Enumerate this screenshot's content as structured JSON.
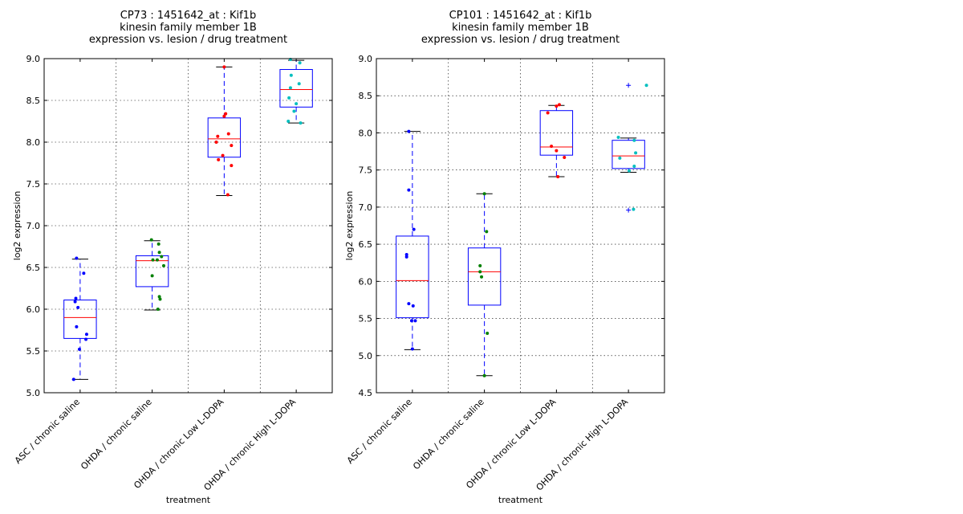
{
  "chart_data": [
    {
      "type": "box",
      "title_lines": [
        "CP73 : 1451642_at : Kif1b",
        "kinesin family member 1B",
        "expression vs. lesion / drug treatment"
      ],
      "xlabel": "treatment",
      "ylabel": "log2 expression",
      "ylim": [
        5.0,
        9.0
      ],
      "yticks": [
        5.0,
        5.5,
        6.0,
        6.5,
        7.0,
        7.5,
        8.0,
        8.5,
        9.0
      ],
      "grid": true,
      "categories": [
        "ASC / chronic saline",
        "OHDA / chronic saline",
        "OHDA / chronic Low L-DOPA",
        "OHDA / chronic High L-DOPA"
      ],
      "colors": [
        "#0000ff",
        "#008000",
        "#ff0000",
        "#00bfbf"
      ],
      "boxes": [
        {
          "whisker_low": 5.16,
          "q1": 5.65,
          "median": 5.9,
          "q3": 6.11,
          "whisker_high": 6.6
        },
        {
          "whisker_low": 5.99,
          "q1": 6.27,
          "median": 6.58,
          "q3": 6.64,
          "whisker_high": 6.82
        },
        {
          "whisker_low": 7.36,
          "q1": 7.82,
          "median": 8.04,
          "q3": 8.29,
          "whisker_high": 8.9
        },
        {
          "whisker_low": 8.23,
          "q1": 8.42,
          "median": 8.63,
          "q3": 8.87,
          "whisker_high": 8.98
        }
      ],
      "outliers": [
        [],
        [],
        [],
        []
      ],
      "points": [
        [
          {
            "dx": -0.05,
            "y": 6.61
          },
          {
            "dx": 0.05,
            "y": 6.43
          },
          {
            "dx": -0.06,
            "y": 6.13
          },
          {
            "dx": -0.07,
            "y": 6.09
          },
          {
            "dx": -0.03,
            "y": 6.02
          },
          {
            "dx": -0.05,
            "y": 5.79
          },
          {
            "dx": 0.09,
            "y": 5.7
          },
          {
            "dx": 0.08,
            "y": 5.64
          },
          {
            "dx": -0.01,
            "y": 5.52
          },
          {
            "dx": -0.09,
            "y": 5.16
          }
        ],
        [
          {
            "dx": -0.01,
            "y": 6.83
          },
          {
            "dx": 0.09,
            "y": 6.78
          },
          {
            "dx": 0.1,
            "y": 6.68
          },
          {
            "dx": 0.13,
            "y": 6.63
          },
          {
            "dx": 0.01,
            "y": 6.59
          },
          {
            "dx": 0.07,
            "y": 6.59
          },
          {
            "dx": 0.16,
            "y": 6.52
          },
          {
            "dx": 0.0,
            "y": 6.4
          },
          {
            "dx": 0.1,
            "y": 6.15
          },
          {
            "dx": 0.11,
            "y": 6.12
          },
          {
            "dx": 0.08,
            "y": 6.0
          }
        ],
        [
          {
            "dx": 0.0,
            "y": 8.9
          },
          {
            "dx": 0.02,
            "y": 8.34
          },
          {
            "dx": 0.0,
            "y": 8.31
          },
          {
            "dx": -0.09,
            "y": 8.07
          },
          {
            "dx": 0.06,
            "y": 8.1
          },
          {
            "dx": -0.11,
            "y": 8.0
          },
          {
            "dx": 0.1,
            "y": 7.96
          },
          {
            "dx": -0.02,
            "y": 7.84
          },
          {
            "dx": -0.08,
            "y": 7.79
          },
          {
            "dx": 0.1,
            "y": 7.72
          },
          {
            "dx": 0.05,
            "y": 7.37
          }
        ],
        [
          {
            "dx": -0.08,
            "y": 8.99
          },
          {
            "dx": 0.05,
            "y": 8.95
          },
          {
            "dx": -0.07,
            "y": 8.8
          },
          {
            "dx": 0.04,
            "y": 8.7
          },
          {
            "dx": -0.08,
            "y": 8.65
          },
          {
            "dx": -0.1,
            "y": 8.53
          },
          {
            "dx": 0.0,
            "y": 8.46
          },
          {
            "dx": -0.03,
            "y": 8.37
          },
          {
            "dx": -0.11,
            "y": 8.25
          },
          {
            "dx": 0.06,
            "y": 8.23
          }
        ]
      ]
    },
    {
      "type": "box",
      "title_lines": [
        "CP101 : 1451642_at : Kif1b",
        "kinesin family member 1B",
        "expression vs. lesion / drug treatment"
      ],
      "xlabel": "treatment",
      "ylabel": "log2 expression",
      "ylim": [
        4.5,
        9.0
      ],
      "yticks": [
        4.5,
        5.0,
        5.5,
        6.0,
        6.5,
        7.0,
        7.5,
        8.0,
        8.5,
        9.0
      ],
      "grid": true,
      "categories": [
        "ASC / chronic saline",
        "OHDA / chronic saline",
        "OHDA / chronic Low L-DOPA",
        "OHDA / chronic High L-DOPA"
      ],
      "colors": [
        "#0000ff",
        "#008000",
        "#ff0000",
        "#00bfbf"
      ],
      "boxes": [
        {
          "whisker_low": 5.08,
          "q1": 5.51,
          "median": 6.01,
          "q3": 6.61,
          "whisker_high": 8.02
        },
        {
          "whisker_low": 4.73,
          "q1": 5.68,
          "median": 6.13,
          "q3": 6.45,
          "whisker_high": 7.18
        },
        {
          "whisker_low": 7.41,
          "q1": 7.7,
          "median": 7.81,
          "q3": 8.3,
          "whisker_high": 8.37
        },
        {
          "whisker_low": 7.47,
          "q1": 7.52,
          "median": 7.69,
          "q3": 7.9,
          "whisker_high": 7.93
        }
      ],
      "outliers": [
        [],
        [],
        [],
        [
          8.64,
          6.96
        ]
      ],
      "points": [
        [
          {
            "dx": -0.05,
            "y": 8.02
          },
          {
            "dx": -0.05,
            "y": 7.23
          },
          {
            "dx": 0.02,
            "y": 6.7
          },
          {
            "dx": -0.08,
            "y": 6.36
          },
          {
            "dx": -0.08,
            "y": 6.33
          },
          {
            "dx": -0.05,
            "y": 5.7
          },
          {
            "dx": 0.01,
            "y": 5.67
          },
          {
            "dx": -0.01,
            "y": 5.47
          },
          {
            "dx": 0.04,
            "y": 5.47
          },
          {
            "dx": 0.0,
            "y": 5.09
          }
        ],
        [
          {
            "dx": 0.0,
            "y": 7.18
          },
          {
            "dx": 0.03,
            "y": 6.67
          },
          {
            "dx": -0.06,
            "y": 6.21
          },
          {
            "dx": -0.06,
            "y": 6.13
          },
          {
            "dx": -0.04,
            "y": 6.06
          },
          {
            "dx": 0.04,
            "y": 5.3
          },
          {
            "dx": 0.0,
            "y": 4.73
          }
        ],
        [
          {
            "dx": 0.04,
            "y": 8.38
          },
          {
            "dx": 0.0,
            "y": 8.36
          },
          {
            "dx": -0.12,
            "y": 8.27
          },
          {
            "dx": -0.07,
            "y": 7.82
          },
          {
            "dx": 0.0,
            "y": 7.76
          },
          {
            "dx": 0.11,
            "y": 7.67
          },
          {
            "dx": 0.02,
            "y": 7.41
          }
        ],
        [
          {
            "dx": -0.14,
            "y": 7.94
          },
          {
            "dx": 0.08,
            "y": 7.9
          },
          {
            "dx": 0.1,
            "y": 7.73
          },
          {
            "dx": -0.12,
            "y": 7.66
          },
          {
            "dx": 0.08,
            "y": 7.55
          },
          {
            "dx": 0.01,
            "y": 7.49
          },
          {
            "dx": 0.25,
            "y": 8.64
          },
          {
            "dx": 0.07,
            "y": 6.97
          }
        ]
      ]
    }
  ]
}
